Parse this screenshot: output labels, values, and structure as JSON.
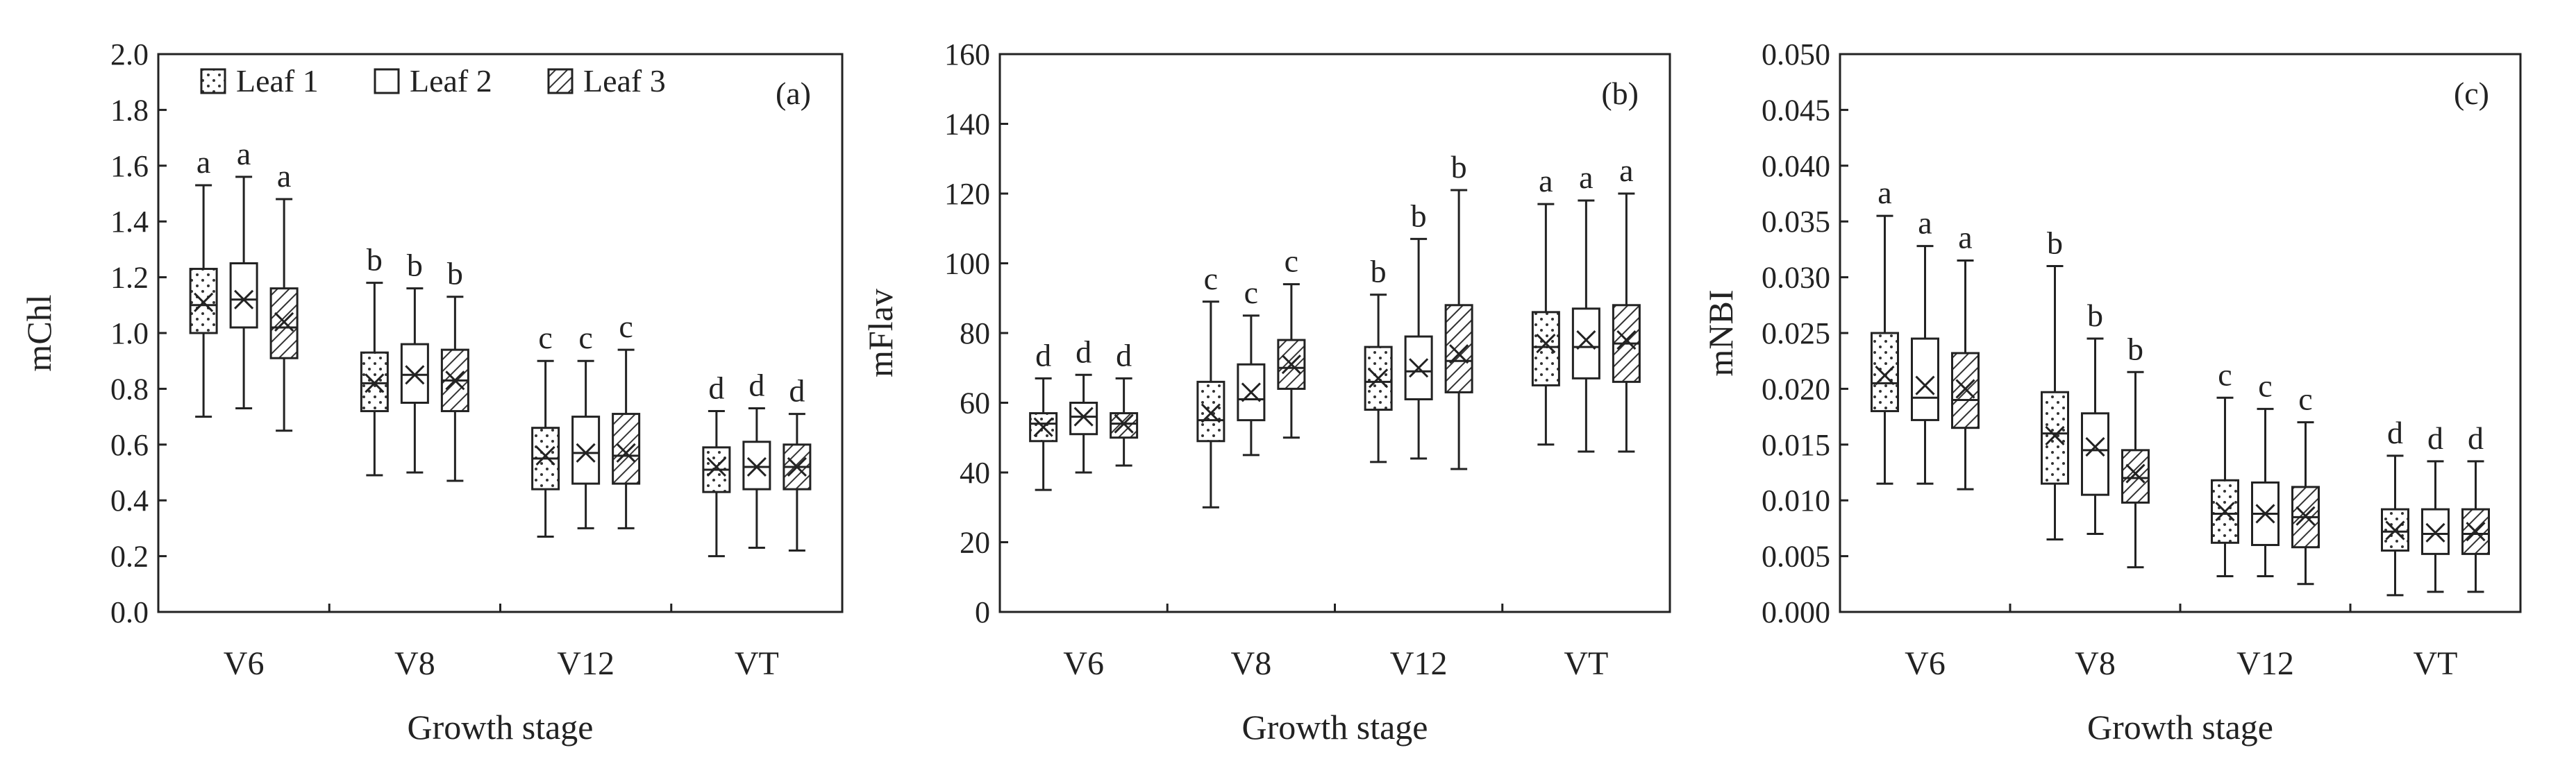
{
  "figure": {
    "background": "#ffffff",
    "ink_color": "#222222"
  },
  "legend": {
    "items": [
      {
        "label": "Leaf 1",
        "pattern": "dots"
      },
      {
        "label": "Leaf 2",
        "pattern": "blank"
      },
      {
        "label": "Leaf 3",
        "pattern": "hatch"
      }
    ]
  },
  "chart_data": [
    {
      "type": "box",
      "panel_label": "(a)",
      "title": "",
      "xlabel": "Growth stage",
      "ylabel": "mChl",
      "ylim": [
        0,
        2.0
      ],
      "ytick_step": 0.2,
      "ytick_labels": [
        "0.0",
        "0.2",
        "0.4",
        "0.6",
        "0.8",
        "1.0",
        "1.2",
        "1.4",
        "1.6",
        "1.8",
        "2.0"
      ],
      "categories": [
        "V6",
        "V8",
        "V12",
        "VT"
      ],
      "series": [
        {
          "name": "Leaf 1",
          "boxes": [
            {
              "min": 0.7,
              "q1": 1.0,
              "median": 1.1,
              "mean": 1.11,
              "q3": 1.23,
              "max": 1.53,
              "sig": "a"
            },
            {
              "min": 0.49,
              "q1": 0.72,
              "median": 0.82,
              "mean": 0.82,
              "q3": 0.93,
              "max": 1.18,
              "sig": "b"
            },
            {
              "min": 0.27,
              "q1": 0.44,
              "median": 0.55,
              "mean": 0.56,
              "q3": 0.66,
              "max": 0.9,
              "sig": "c"
            },
            {
              "min": 0.2,
              "q1": 0.43,
              "median": 0.51,
              "mean": 0.52,
              "q3": 0.59,
              "max": 0.72,
              "sig": "d"
            }
          ]
        },
        {
          "name": "Leaf 2",
          "boxes": [
            {
              "min": 0.73,
              "q1": 1.02,
              "median": 1.12,
              "mean": 1.12,
              "q3": 1.25,
              "max": 1.56,
              "sig": "a"
            },
            {
              "min": 0.5,
              "q1": 0.75,
              "median": 0.85,
              "mean": 0.85,
              "q3": 0.96,
              "max": 1.16,
              "sig": "b"
            },
            {
              "min": 0.3,
              "q1": 0.46,
              "median": 0.57,
              "mean": 0.57,
              "q3": 0.7,
              "max": 0.9,
              "sig": "c"
            },
            {
              "min": 0.23,
              "q1": 0.44,
              "median": 0.52,
              "mean": 0.52,
              "q3": 0.61,
              "max": 0.73,
              "sig": "d"
            }
          ]
        },
        {
          "name": "Leaf 3",
          "boxes": [
            {
              "min": 0.65,
              "q1": 0.91,
              "median": 1.02,
              "mean": 1.04,
              "q3": 1.16,
              "max": 1.48,
              "sig": "a"
            },
            {
              "min": 0.47,
              "q1": 0.72,
              "median": 0.83,
              "mean": 0.83,
              "q3": 0.94,
              "max": 1.13,
              "sig": "b"
            },
            {
              "min": 0.3,
              "q1": 0.46,
              "median": 0.56,
              "mean": 0.57,
              "q3": 0.71,
              "max": 0.94,
              "sig": "c"
            },
            {
              "min": 0.22,
              "q1": 0.44,
              "median": 0.52,
              "mean": 0.52,
              "q3": 0.6,
              "max": 0.71,
              "sig": "d"
            }
          ]
        }
      ]
    },
    {
      "type": "box",
      "panel_label": "(b)",
      "title": "",
      "xlabel": "Growth stage",
      "ylabel": "mFlav",
      "ylim": [
        0,
        160
      ],
      "ytick_step": 20,
      "ytick_labels": [
        "0",
        "20",
        "40",
        "60",
        "80",
        "100",
        "120",
        "140",
        "160"
      ],
      "categories": [
        "V6",
        "V8",
        "V12",
        "VT"
      ],
      "series": [
        {
          "name": "Leaf 1",
          "boxes": [
            {
              "min": 35,
              "q1": 49,
              "median": 54,
              "mean": 53,
              "q3": 57,
              "max": 67,
              "sig": "d"
            },
            {
              "min": 30,
              "q1": 49,
              "median": 55,
              "mean": 57,
              "q3": 66,
              "max": 89,
              "sig": "c"
            },
            {
              "min": 43,
              "q1": 58,
              "median": 66,
              "mean": 67,
              "q3": 76,
              "max": 91,
              "sig": "b"
            },
            {
              "min": 48,
              "q1": 65,
              "median": 76,
              "mean": 77,
              "q3": 86,
              "max": 117,
              "sig": "a"
            }
          ]
        },
        {
          "name": "Leaf 2",
          "boxes": [
            {
              "min": 40,
              "q1": 51,
              "median": 56,
              "mean": 56,
              "q3": 60,
              "max": 68,
              "sig": "d"
            },
            {
              "min": 45,
              "q1": 55,
              "median": 61,
              "mean": 63,
              "q3": 71,
              "max": 85,
              "sig": "c"
            },
            {
              "min": 44,
              "q1": 61,
              "median": 69,
              "mean": 70,
              "q3": 79,
              "max": 107,
              "sig": "b"
            },
            {
              "min": 46,
              "q1": 67,
              "median": 76,
              "mean": 78,
              "q3": 87,
              "max": 118,
              "sig": "a"
            }
          ]
        },
        {
          "name": "Leaf 3",
          "boxes": [
            {
              "min": 42,
              "q1": 50,
              "median": 54,
              "mean": 54,
              "q3": 57,
              "max": 67,
              "sig": "d"
            },
            {
              "min": 50,
              "q1": 64,
              "median": 70,
              "mean": 71,
              "q3": 78,
              "max": 94,
              "sig": "c"
            },
            {
              "min": 41,
              "q1": 63,
              "median": 72,
              "mean": 74,
              "q3": 88,
              "max": 121,
              "sig": "b"
            },
            {
              "min": 46,
              "q1": 66,
              "median": 77,
              "mean": 78,
              "q3": 88,
              "max": 120,
              "sig": "a"
            }
          ]
        }
      ]
    },
    {
      "type": "box",
      "panel_label": "(c)",
      "title": "",
      "xlabel": "Growth stage",
      "ylabel": "mNBI",
      "ylim": [
        0,
        0.05
      ],
      "ytick_step": 0.005,
      "ytick_labels": [
        "0.000",
        "0.005",
        "0.010",
        "0.015",
        "0.020",
        "0.025",
        "0.030",
        "0.035",
        "0.040",
        "0.045",
        "0.050"
      ],
      "categories": [
        "V6",
        "V8",
        "V12",
        "VT"
      ],
      "series": [
        {
          "name": "Leaf 1",
          "boxes": [
            {
              "min": 0.0115,
              "q1": 0.018,
              "median": 0.0205,
              "mean": 0.0212,
              "q3": 0.025,
              "max": 0.0355,
              "sig": "a"
            },
            {
              "min": 0.0065,
              "q1": 0.0115,
              "median": 0.016,
              "mean": 0.0158,
              "q3": 0.0197,
              "max": 0.031,
              "sig": "b"
            },
            {
              "min": 0.0032,
              "q1": 0.0062,
              "median": 0.0088,
              "mean": 0.009,
              "q3": 0.0118,
              "max": 0.0192,
              "sig": "c"
            },
            {
              "min": 0.0015,
              "q1": 0.0055,
              "median": 0.0072,
              "mean": 0.0073,
              "q3": 0.0092,
              "max": 0.014,
              "sig": "d"
            }
          ]
        },
        {
          "name": "Leaf 2",
          "boxes": [
            {
              "min": 0.0115,
              "q1": 0.0172,
              "median": 0.0192,
              "mean": 0.0203,
              "q3": 0.0245,
              "max": 0.0328,
              "sig": "a"
            },
            {
              "min": 0.007,
              "q1": 0.0105,
              "median": 0.0145,
              "mean": 0.0148,
              "q3": 0.0178,
              "max": 0.0245,
              "sig": "b"
            },
            {
              "min": 0.0032,
              "q1": 0.006,
              "median": 0.0088,
              "mean": 0.0088,
              "q3": 0.0116,
              "max": 0.0182,
              "sig": "c"
            },
            {
              "min": 0.0018,
              "q1": 0.0052,
              "median": 0.007,
              "mean": 0.0071,
              "q3": 0.0092,
              "max": 0.0135,
              "sig": "d"
            }
          ]
        },
        {
          "name": "Leaf 3",
          "boxes": [
            {
              "min": 0.011,
              "q1": 0.0165,
              "median": 0.019,
              "mean": 0.02,
              "q3": 0.0232,
              "max": 0.0315,
              "sig": "a"
            },
            {
              "min": 0.004,
              "q1": 0.0098,
              "median": 0.012,
              "mean": 0.0124,
              "q3": 0.0145,
              "max": 0.0215,
              "sig": "b"
            },
            {
              "min": 0.0025,
              "q1": 0.0058,
              "median": 0.0085,
              "mean": 0.0086,
              "q3": 0.0112,
              "max": 0.017,
              "sig": "c"
            },
            {
              "min": 0.0018,
              "q1": 0.0052,
              "median": 0.007,
              "mean": 0.0072,
              "q3": 0.0092,
              "max": 0.0135,
              "sig": "d"
            }
          ]
        }
      ]
    }
  ]
}
